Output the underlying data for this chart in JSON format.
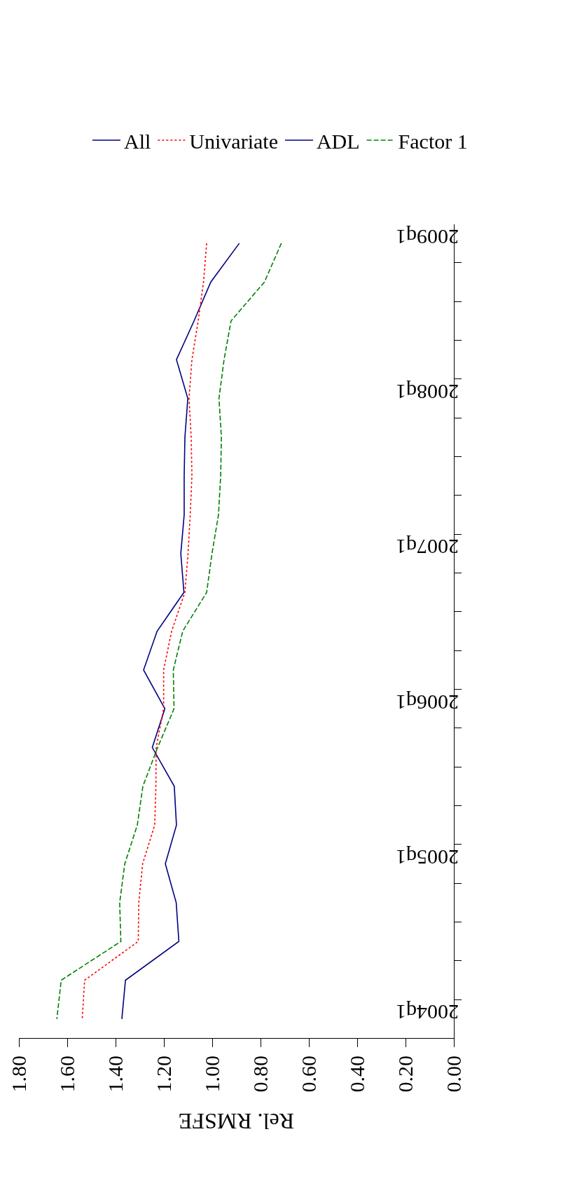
{
  "chart_data": {
    "type": "line",
    "orientation": "horizontal",
    "xlabel": "Rel. RMSFE",
    "categories": [
      "2009q1",
      null,
      null,
      null,
      "2008q1",
      null,
      null,
      null,
      "2007q1",
      null,
      null,
      null,
      "2006q1",
      null,
      null,
      null,
      "2005q1",
      null,
      null,
      null,
      "2004q1"
    ],
    "series": [
      {
        "name": "All",
        "color": "#000080",
        "line_style": "solid",
        "values": [
          0.888,
          1.006,
          1.075,
          1.148,
          1.101,
          1.113,
          1.116,
          1.116,
          1.13,
          1.117,
          1.228,
          1.284,
          1.196,
          1.248,
          1.157,
          1.148,
          1.194,
          1.149,
          1.138,
          1.359,
          1.374
        ]
      },
      {
        "name": "Univariate",
        "color": "#ff0000",
        "line_style": "dotted",
        "values": [
          1.023,
          1.036,
          1.058,
          1.084,
          1.096,
          1.087,
          1.084,
          1.091,
          1.1,
          1.113,
          1.168,
          1.201,
          1.201,
          1.232,
          1.233,
          1.238,
          1.288,
          1.304,
          1.306,
          1.528,
          1.538
        ]
      },
      {
        "name": "ADL",
        "color": "#000080",
        "line_style": "solid",
        "values": [
          null,
          null,
          null,
          null,
          null,
          null,
          null,
          null,
          null,
          null,
          null,
          null,
          null,
          null,
          null,
          null,
          null,
          null,
          null,
          null,
          null
        ]
      },
      {
        "name": "Factor 1",
        "color": "#008000",
        "line_style": "dashed",
        "values": [
          0.714,
          0.784,
          0.922,
          0.951,
          0.972,
          0.962,
          0.965,
          0.974,
          1.001,
          1.023,
          1.122,
          1.161,
          1.158,
          1.226,
          1.287,
          1.31,
          1.362,
          1.383,
          1.378,
          1.625,
          1.643
        ]
      }
    ],
    "xlim": [
      1.8,
      0
    ],
    "xticks": [
      {
        "value": 1.8,
        "label": "1.80"
      },
      {
        "value": 1.6,
        "label": "1.60"
      },
      {
        "value": 1.4,
        "label": "1.40"
      },
      {
        "value": 1.2,
        "label": "1.20"
      },
      {
        "value": 1,
        "label": "1.00"
      },
      {
        "value": 0.8,
        "label": "0.80"
      },
      {
        "value": 0.6,
        "label": "0.60"
      },
      {
        "value": 0.4,
        "label": "0.40"
      },
      {
        "value": 0.2,
        "label": "0.20"
      },
      {
        "value": 0,
        "label": "0.00"
      }
    ],
    "grid": false,
    "legend": "top",
    "marker": "none"
  }
}
